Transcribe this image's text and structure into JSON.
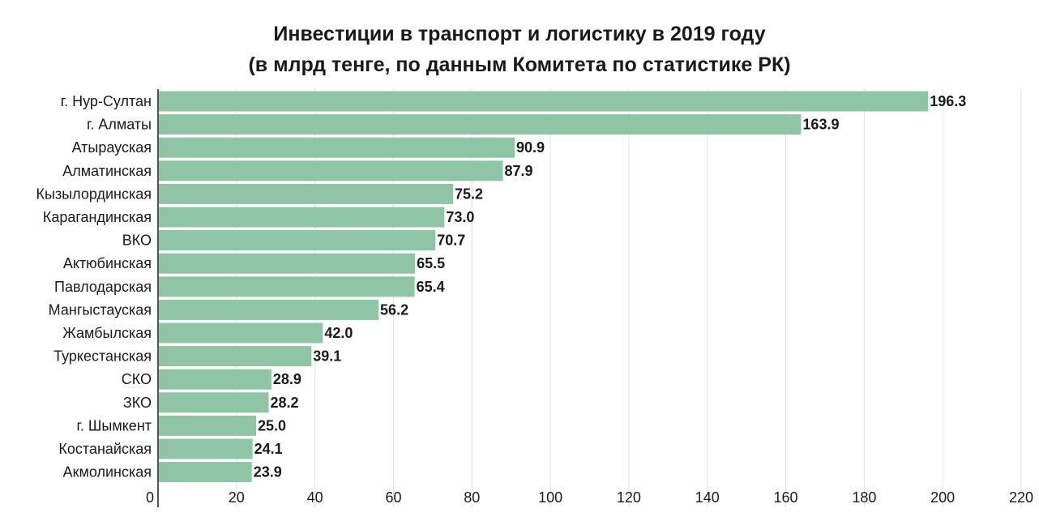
{
  "chart_data": {
    "type": "bar",
    "orientation": "horizontal",
    "title": "Инвестиции в транспорт и логистику в 2019 году",
    "subtitle": "(в млрд тенге, по данным Комитета по статистике РК)",
    "categories": [
      "г. Нур-Султан",
      "г. Алматы",
      "Атырауская",
      "Алматинская",
      "Кызылординская",
      "Карагандинская",
      "ВКО",
      "Актюбинская",
      "Павлодарская",
      "Мангыстауская",
      "Жамбылская",
      "Туркестанская",
      "СКО",
      "ЗКО",
      "г. Шымкент",
      "Костанайская",
      "Акмолинская"
    ],
    "values": [
      196.3,
      163.9,
      90.9,
      87.9,
      75.2,
      73.0,
      70.7,
      65.5,
      65.4,
      56.2,
      42.0,
      39.1,
      28.9,
      28.2,
      25.0,
      24.1,
      23.9
    ],
    "value_labels": [
      "196.3",
      "163.9",
      "90.9",
      "87.9",
      "75.2",
      "73.0",
      "70.7",
      "65.5",
      "65.4",
      "56.2",
      "42.0",
      "39.1",
      "28.9",
      "28.2",
      "25.0",
      "24.1",
      "23.9"
    ],
    "xlim": [
      0,
      220
    ],
    "xticks": [
      0,
      20,
      40,
      60,
      80,
      100,
      120,
      140,
      160,
      180,
      200,
      220
    ],
    "xtick_labels": [
      "0",
      "20",
      "40",
      "60",
      "80",
      "100",
      "120",
      "140",
      "160",
      "180",
      "200",
      "220"
    ],
    "grid": "vertical",
    "legend": "none",
    "colors": {
      "bar": "#8fc4a5",
      "grid": "#e2e2e2",
      "axis": "#555555",
      "text": "#1a1a1a"
    }
  }
}
